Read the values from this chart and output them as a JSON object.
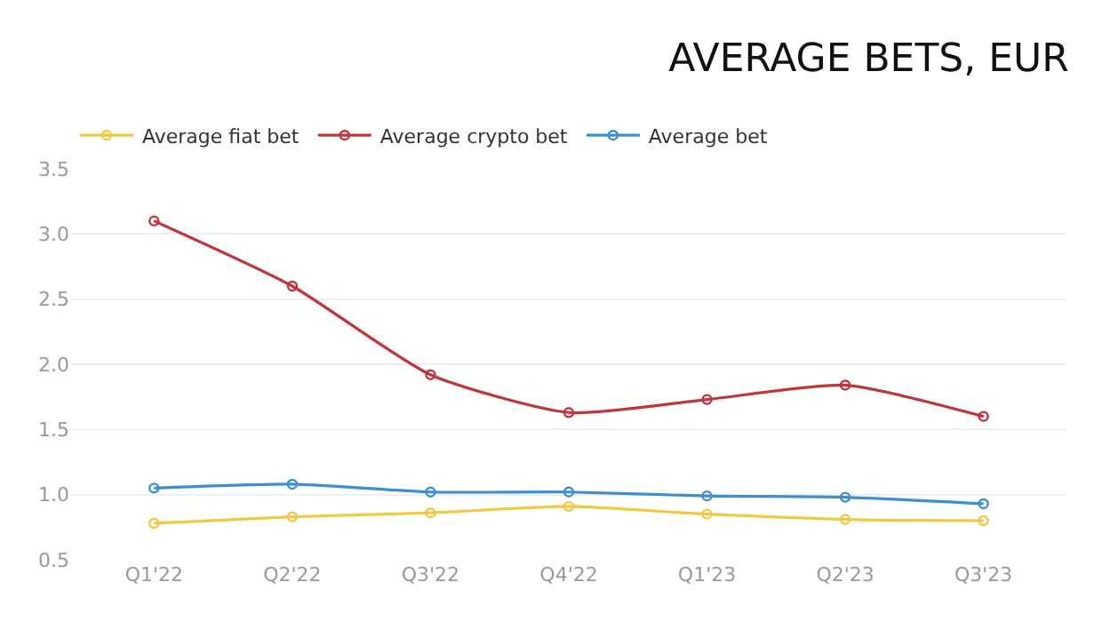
{
  "chart_data": {
    "type": "line",
    "title": "AVERAGE BETS, EUR",
    "categories": [
      "Q1'22",
      "Q2'22",
      "Q3'22",
      "Q4'22",
      "Q1'23",
      "Q2'23",
      "Q3'23"
    ],
    "series": [
      {
        "name": "Average fiat bet",
        "color": "#f2c744",
        "values": [
          0.78,
          0.83,
          0.86,
          0.91,
          0.85,
          0.81,
          0.8
        ]
      },
      {
        "name": "Average crypto bet",
        "color": "#c0353b",
        "values": [
          3.1,
          2.6,
          1.92,
          1.63,
          1.73,
          1.84,
          1.6
        ]
      },
      {
        "name": "Average bet",
        "color": "#3d8fd1",
        "values": [
          1.05,
          1.08,
          1.02,
          1.02,
          0.99,
          0.98,
          0.93
        ]
      }
    ],
    "ylim": [
      0.5,
      3.5
    ],
    "yticks": [
      0.5,
      {
        "value": 1,
        "label": "1.0"
      },
      1.5,
      {
        "value": 2,
        "label": "2.0"
      },
      2.5,
      {
        "value": 3,
        "label": "3.0"
      },
      3.5
    ],
    "grid": "y",
    "legend": "top left",
    "marker": "circle",
    "line_style": "solid"
  }
}
